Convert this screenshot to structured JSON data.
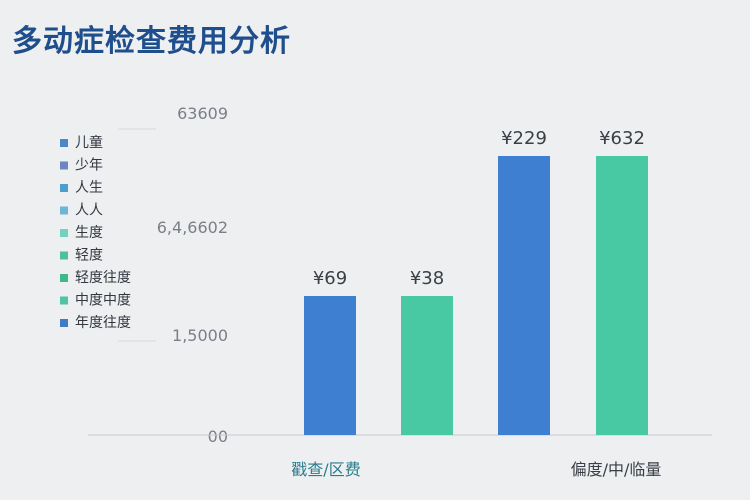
{
  "chart_data": {
    "type": "bar",
    "title": "多动症检查费用分析",
    "yticks": [
      "00",
      "1,5000",
      "6,4,6602",
      "63609"
    ],
    "categories": [
      "戳查/区费",
      "偏度/中/临量"
    ],
    "series": [
      {
        "values": [
          69,
          229
        ],
        "labels": [
          "¥69",
          "¥229"
        ],
        "color": "#3f7fd2"
      },
      {
        "values": [
          38,
          632
        ],
        "labels": [
          "¥38",
          "¥632"
        ],
        "color": "#48c9a3"
      }
    ],
    "legend_position": "left",
    "legend": [
      {
        "label": "儿童",
        "color": "#4b87c9"
      },
      {
        "label": "少年",
        "color": "#6b84c4"
      },
      {
        "label": "人生",
        "color": "#4c9ecc"
      },
      {
        "label": "人人",
        "color": "#6cb7d8"
      },
      {
        "label": "生度",
        "color": "#73d2bf"
      },
      {
        "label": "轻度",
        "color": "#4fc19a"
      },
      {
        "label": "轻度往度",
        "color": "#3fb88a"
      },
      {
        "label": "中度中度",
        "color": "#52c4a6"
      },
      {
        "label": "年度往度",
        "color": "#3f7cc4"
      }
    ]
  }
}
